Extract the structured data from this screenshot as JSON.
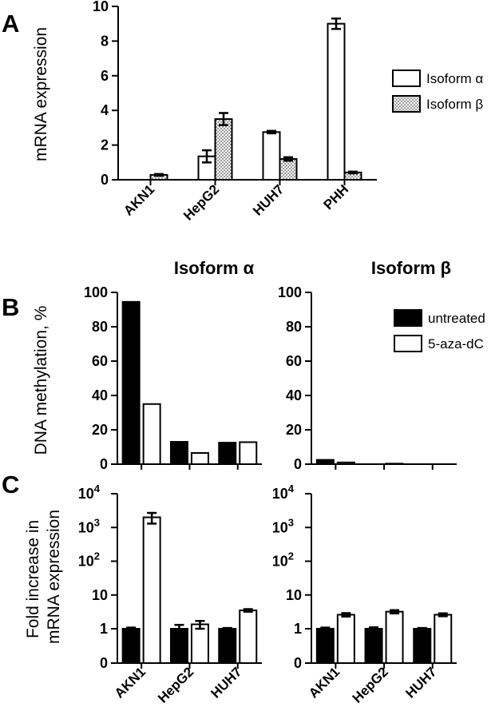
{
  "chart_data": [
    {
      "panel": "A",
      "type": "bar",
      "ylabel": "mRNA expression",
      "ylim": [
        0,
        10
      ],
      "yticks": [
        0,
        2,
        4,
        6,
        8,
        10
      ],
      "categories": [
        "AKN1",
        "HepG2",
        "HUH7",
        "PHH"
      ],
      "series": [
        {
          "name": "Isoform α",
          "values": [
            0.0,
            1.35,
            2.75,
            9.0
          ],
          "errors": [
            0.0,
            0.35,
            0.07,
            0.3
          ],
          "fill": "#ffffff"
        },
        {
          "name": "Isoform β",
          "values": [
            0.28,
            3.5,
            1.2,
            0.42
          ],
          "errors": [
            0.05,
            0.35,
            0.1,
            0.05
          ],
          "fill": "dotted"
        }
      ]
    },
    {
      "panel": "B",
      "type": "bar",
      "title": "Isoform α",
      "ylabel": "DNA methylation, %",
      "ylim": [
        0,
        100
      ],
      "yticks": [
        0,
        20,
        40,
        60,
        80,
        100
      ],
      "categories": [
        "AKN1",
        "HepG2",
        "HUH7"
      ],
      "series": [
        {
          "name": "untreated",
          "values": [
            94.5,
            13,
            12.5
          ],
          "fill": "#000000"
        },
        {
          "name": "5-aza-dC",
          "values": [
            35,
            6.5,
            12.8
          ],
          "fill": "#ffffff"
        }
      ]
    },
    {
      "panel": "B",
      "type": "bar",
      "title": "Isoform β",
      "ylim": [
        0,
        100
      ],
      "yticks": [
        0,
        20,
        40,
        60,
        80,
        100
      ],
      "categories": [
        "AKN1",
        "HepG2",
        "HUH7"
      ],
      "series": [
        {
          "name": "untreated",
          "values": [
            2.5,
            0,
            0
          ],
          "fill": "#000000"
        },
        {
          "name": "5-aza-dC",
          "values": [
            1.0,
            0.3,
            0
          ],
          "fill": "#ffffff"
        }
      ]
    },
    {
      "panel": "C",
      "type": "bar",
      "ylabel": "Fold increase in\nmRNA expression",
      "yscale": "log",
      "ylim": [
        0.1,
        10000
      ],
      "yticks": [
        {
          "v": 1,
          "b": "1",
          "s": ""
        },
        {
          "v": 10,
          "b": "10",
          "s": ""
        },
        {
          "v": 100,
          "b": "10",
          "s": "2"
        },
        {
          "v": 1000,
          "b": "10",
          "s": "3"
        },
        {
          "v": 10000,
          "b": "10",
          "s": "4"
        }
      ],
      "ytick_zero": "0",
      "categories": [
        "AKN1",
        "HepG2",
        "HUH7"
      ],
      "series": [
        {
          "name": "untreated",
          "values": [
            1.0,
            1.0,
            1.0
          ],
          "errors": [
            0.08,
            0.3,
            0.05
          ],
          "fill": "#000000"
        },
        {
          "name": "5-aza-dC",
          "values": [
            2000,
            1.35,
            3.5
          ],
          "errors": [
            700,
            0.35,
            0.3
          ],
          "fill": "#ffffff"
        }
      ]
    },
    {
      "panel": "C",
      "type": "bar",
      "yscale": "log",
      "ylim": [
        0.1,
        10000
      ],
      "yticks": [
        {
          "v": 1,
          "b": "1",
          "s": ""
        },
        {
          "v": 10,
          "b": "10",
          "s": ""
        },
        {
          "v": 100,
          "b": "10",
          "s": "2"
        },
        {
          "v": 1000,
          "b": "10",
          "s": "3"
        },
        {
          "v": 10000,
          "b": "10",
          "s": "4"
        }
      ],
      "ytick_zero": "0",
      "categories": [
        "AKN1",
        "HepG2",
        "HUH7"
      ],
      "series": [
        {
          "name": "untreated",
          "values": [
            1.0,
            1.0,
            1.0
          ],
          "errors": [
            0.08,
            0.1,
            0.05
          ],
          "fill": "#000000"
        },
        {
          "name": "5-aza-dC",
          "values": [
            2.6,
            3.2,
            2.6
          ],
          "errors": [
            0.3,
            0.35,
            0.25
          ],
          "fill": "#ffffff"
        }
      ]
    }
  ],
  "panel_letters": {
    "a": "A",
    "b": "B",
    "c": "C"
  },
  "legend_a": [
    "Isoform α",
    "Isoform β"
  ],
  "legend_b": [
    "untreated",
    "5-aza-dC"
  ]
}
